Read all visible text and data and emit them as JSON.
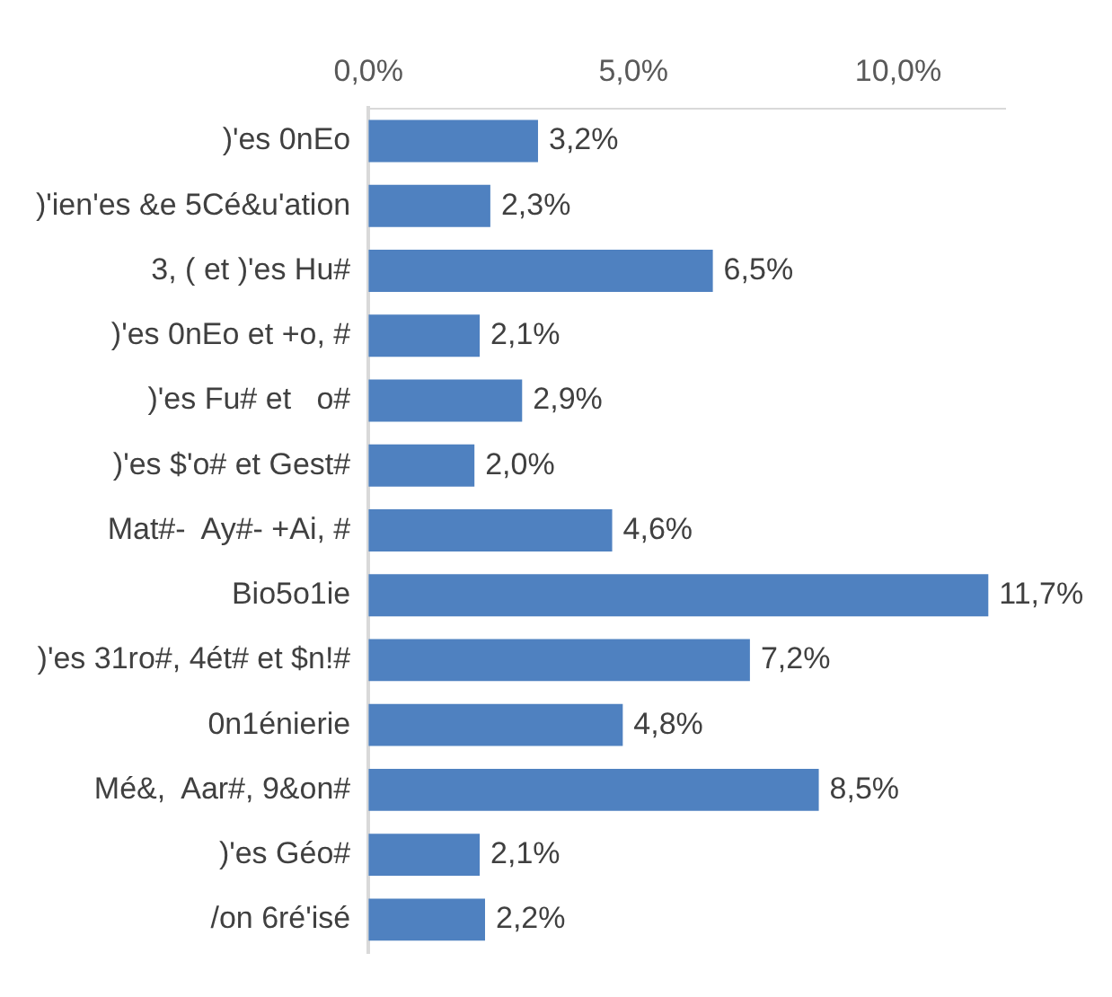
{
  "chart_data": {
    "type": "bar",
    "orientation": "horizontal",
    "categories": [
      ")'es 0nEo",
      ")'ien'es &e 5Cé&u'ation",
      "3, ( et )'es Hu#",
      ")'es 0nEo et +o, #",
      ")'es Fu# et   o#",
      ")'es $'o# et Gest#",
      "Mat#-  Ay#- +Ai, #",
      "Bio5o1ie",
      ")'es 31ro#, 4ét# et $n!#",
      "0n1énierie",
      "Mé&,  Aar#, 9&on#",
      ")'es Géo#",
      "/on 6ré'isé"
    ],
    "values": [
      3.2,
      2.3,
      6.5,
      2.1,
      2.9,
      2.0,
      4.6,
      11.7,
      7.2,
      4.8,
      8.5,
      2.1,
      2.2
    ],
    "value_labels": [
      "3,2%",
      "2,3%",
      "6,5%",
      "2,1%",
      "2,9%",
      "2,0%",
      "4,6%",
      "11,7%",
      "7,2%",
      "4,8%",
      "8,5%",
      "2,1%",
      "2,2%"
    ],
    "color": "#4f81c0",
    "xlim": [
      0,
      12
    ],
    "xticks": [
      {
        "value": 0,
        "label": "0,0%"
      },
      {
        "value": 5,
        "label": "5,0%"
      },
      {
        "value": 10,
        "label": "10,0%"
      }
    ],
    "grid": false,
    "legend": false
  }
}
